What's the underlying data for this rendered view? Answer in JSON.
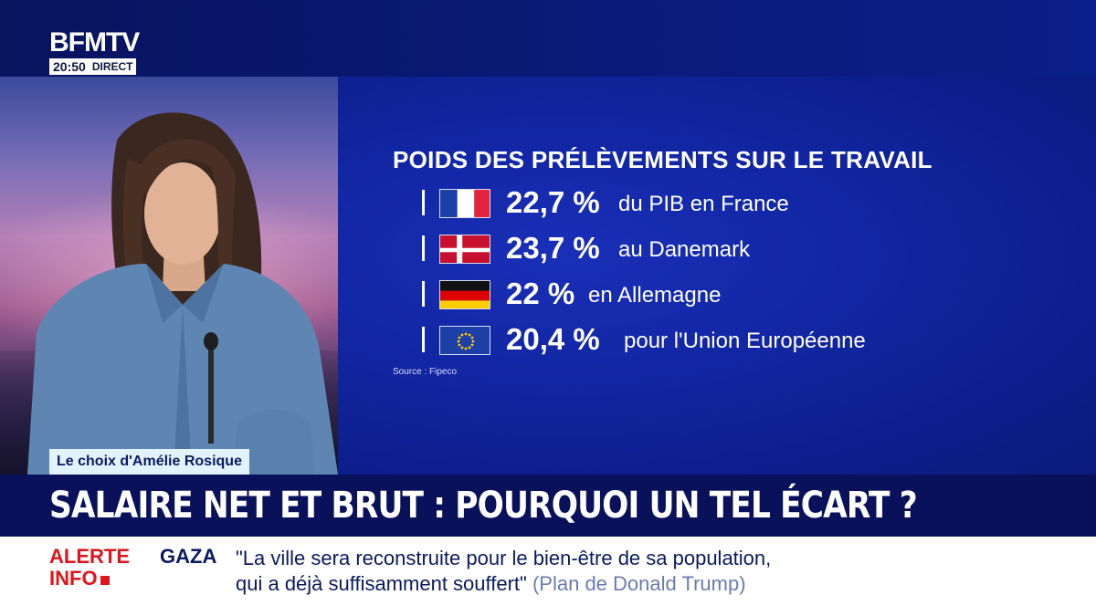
{
  "channel": {
    "logo": "BFMTV",
    "time": "20:50",
    "live_label": "DIRECT"
  },
  "segment": {
    "caption": "Le choix d'Amélie Rosique"
  },
  "graphic": {
    "title": "POIDS DES PRÉLÈVEMENTS SUR LE TRAVAIL",
    "rows": [
      {
        "flag": "france-flag-icon",
        "value": "22,7 %",
        "label": "du PIB en France"
      },
      {
        "flag": "denmark-flag-icon",
        "value": "23,7 %",
        "label": "au Danemark"
      },
      {
        "flag": "germany-flag-icon",
        "value": "22 %",
        "label": "en Allemagne"
      },
      {
        "flag": "eu-flag-icon",
        "value": "20,4 %",
        "label": "pour l'Union Européenne"
      }
    ],
    "source": "Source : Fipeco"
  },
  "headline": "SALAIRE NET ET BRUT : POURQUOI UN TEL ÉCART ?",
  "ticker": {
    "alert_line1": "ALERTE",
    "alert_line2": "INFO",
    "topic": "GAZA",
    "quote_line1": "\"La ville sera reconstruite pour le bien-être de sa population,",
    "quote_line2": "qui a déjà suffisamment souffert\"",
    "attribution": "(Plan de Donald Trump)"
  },
  "colors": {
    "brand_navy": "#08115a",
    "graphic_blue": "#1227a5",
    "alert_red": "#e0151c"
  }
}
